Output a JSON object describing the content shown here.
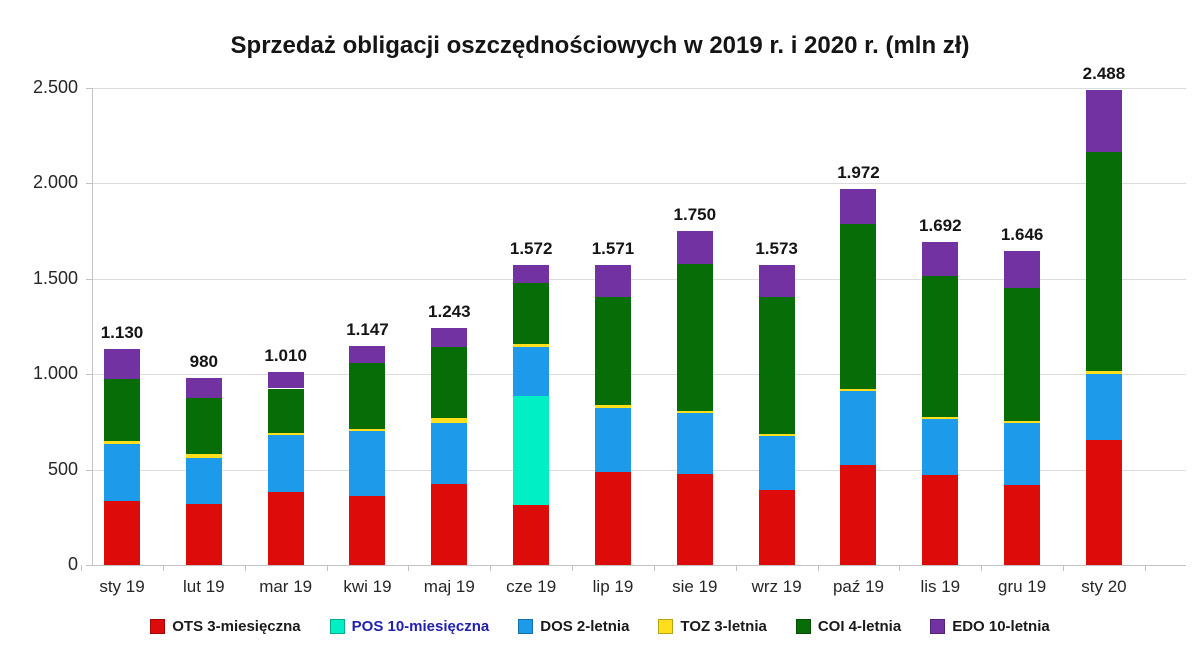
{
  "title": "Sprzedaż obligacji oszczędnościowych w 2019 r. i 2020 r. (mln zł)",
  "chart_data": {
    "type": "bar",
    "stacked": true,
    "title": "Sprzedaż obligacji oszczędnościowych w 2019 r. i 2020 r. (mln zł)",
    "xlabel": "",
    "ylabel": "",
    "ylim": [
      0,
      2500
    ],
    "grid": "horizontal",
    "legend_position": "bottom",
    "categories": [
      "sty 19",
      "lut 19",
      "mar 19",
      "kwi 19",
      "maj 19",
      "cze 19",
      "lip 19",
      "sie 19",
      "wrz 19",
      "paź 19",
      "lis 19",
      "gru 19",
      "sty 20"
    ],
    "y_tick_values": [
      0,
      500,
      1000,
      1500,
      2000,
      2500
    ],
    "y_tick_labels": [
      "0",
      "500",
      "1.000",
      "1.500",
      "2.000",
      "2.500"
    ],
    "totals": [
      1130,
      980,
      1010,
      1147,
      1243,
      1572,
      1571,
      1750,
      1573,
      1972,
      1692,
      1646,
      2488
    ],
    "bar_labels": [
      "1.130",
      "980",
      "1.010",
      "1.147",
      "1.243",
      "1.572",
      "1.571",
      "1.750",
      "1.573",
      "1.972",
      "1.692",
      "1.646",
      "2.488"
    ],
    "series": [
      {
        "name": "OTS 3-miesięczna",
        "color": "#de0b0b",
        "label_color": "#1a1a1a",
        "values": [
          335,
          320,
          380,
          360,
          425,
          315,
          485,
          475,
          395,
          525,
          470,
          420,
          655
        ]
      },
      {
        "name": "POS 10-miesięczna",
        "color": "#00efc4",
        "label_color": "#2121ae",
        "values": [
          0,
          0,
          0,
          0,
          0,
          570,
          0,
          0,
          0,
          0,
          0,
          0,
          0
        ]
      },
      {
        "name": "DOS 2-letnia",
        "color": "#1d9bea",
        "label_color": "#1a1a1a",
        "values": [
          300,
          240,
          300,
          340,
          320,
          260,
          340,
          320,
          280,
          385,
          295,
          325,
          345
        ]
      },
      {
        "name": "TOZ 3-letnia",
        "color": "#ffdf1c",
        "label_color": "#1a1a1a",
        "values": [
          15,
          20,
          12,
          12,
          25,
          12,
          12,
          12,
          10,
          15,
          12,
          12,
          18
        ]
      },
      {
        "name": "COI 4-letnia",
        "color": "#076d07",
        "label_color": "#1a1a1a",
        "values": [
          325,
          295,
          233,
          345,
          375,
          320,
          570,
          768,
          720,
          860,
          740,
          694,
          1145
        ]
      },
      {
        "name": "EDO 10-letnia",
        "color": "#7232a2",
        "label_color": "#1a1a1a",
        "values": [
          155,
          105,
          85,
          90,
          98,
          95,
          164,
          175,
          168,
          187,
          175,
          195,
          325
        ]
      }
    ]
  }
}
